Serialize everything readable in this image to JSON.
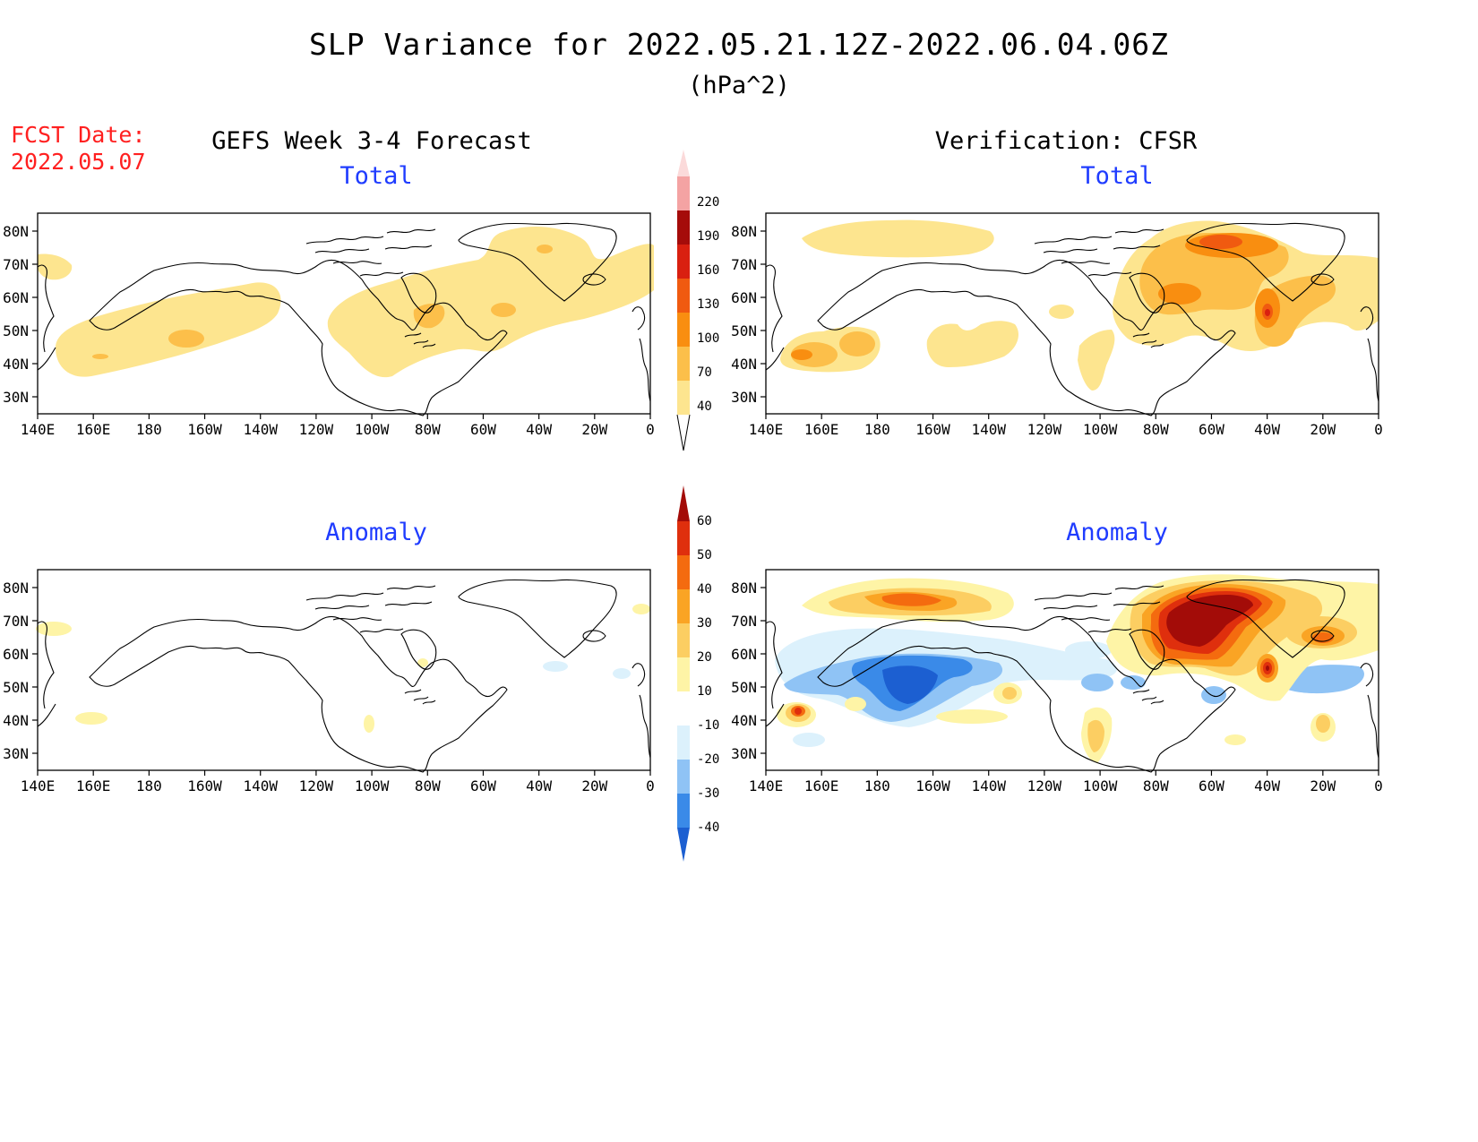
{
  "title": "SLP Variance for 2022.05.21.12Z-2022.06.04.06Z",
  "units": "(hPa^2)",
  "fcst_date": {
    "label": "FCST Date:",
    "value": "2022.05.07"
  },
  "columns": {
    "left": "GEFS Week 3-4 Forecast",
    "right": "Verification: CFSR"
  },
  "panels": [
    {
      "id": "gefs-total",
      "title": "Total"
    },
    {
      "id": "cfsr-total",
      "title": "Total"
    },
    {
      "id": "gefs-anomaly",
      "title": "Anomaly"
    },
    {
      "id": "cfsr-anomaly",
      "title": "Anomaly"
    }
  ],
  "axes": {
    "lat_ticks": [
      "80N",
      "70N",
      "60N",
      "50N",
      "40N",
      "30N"
    ],
    "lon_ticks": [
      "140E",
      "160E",
      "180",
      "160W",
      "140W",
      "120W",
      "100W",
      "80W",
      "60W",
      "40W",
      "20W",
      "0"
    ]
  },
  "colorbar_total": {
    "levels": [
      "40",
      "70",
      "100",
      "130",
      "160",
      "190",
      "220"
    ],
    "colors": [
      "#fde58f",
      "#fcbf4a",
      "#f98e10",
      "#f05a10",
      "#d92010",
      "#a50c0a",
      "#f4a3a3",
      "#fbdada"
    ]
  },
  "colorbar_anomaly": {
    "levels": [
      "-40",
      "-30",
      "-20",
      "-10",
      "10",
      "20",
      "30",
      "40",
      "50",
      "60"
    ],
    "colors": [
      "#1c5fd1",
      "#3a8ae8",
      "#8fc3f5",
      "#dcf1fc",
      "#ffffff",
      "#fef4a6",
      "#fcce62",
      "#faa424",
      "#f46b0f",
      "#df2f0d",
      "#a30c08"
    ]
  },
  "fills": {
    "c40": "#fde58f",
    "c70": "#fcbf4a",
    "c100": "#f98e10",
    "c130": "#f05a10",
    "c160": "#d92010",
    "a10": "#fef4a6",
    "a20": "#fcce62",
    "a30": "#faa424",
    "a40": "#f46b0f",
    "a50": "#df2f0d",
    "a60": "#a30c08",
    "n10": "#dcf1fc",
    "n20": "#8fc3f5",
    "n30": "#3a8ae8",
    "n40": "#1c5fd1"
  }
}
